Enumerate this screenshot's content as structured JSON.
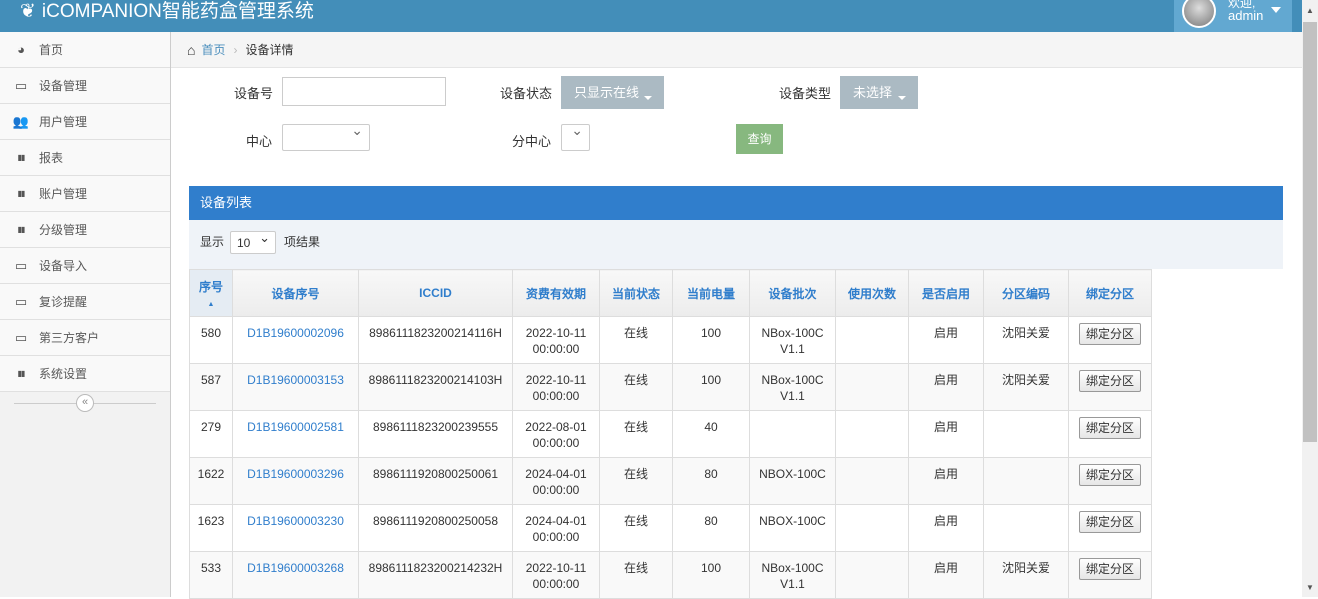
{
  "app": {
    "title": "iCOMPANION智能药盒管理系统",
    "welcome": "欢迎,",
    "user": "admin"
  },
  "sidebar": {
    "items": [
      {
        "label": "首页",
        "icon": "dashboard-icon"
      },
      {
        "label": "设备管理",
        "icon": "hdd-icon"
      },
      {
        "label": "用户管理",
        "icon": "users-icon"
      },
      {
        "label": "报表",
        "icon": "bar-chart-icon"
      },
      {
        "label": "账户管理",
        "icon": "bar-chart-icon"
      },
      {
        "label": "分级管理",
        "icon": "bar-chart-icon"
      },
      {
        "label": "设备导入",
        "icon": "hdd-icon"
      },
      {
        "label": "复诊提醒",
        "icon": "hdd-icon"
      },
      {
        "label": "第三方客户",
        "icon": "hdd-icon"
      },
      {
        "label": "系统设置",
        "icon": "bar-chart-icon"
      }
    ]
  },
  "breadcrumb": {
    "home": "首页",
    "current": "设备详情"
  },
  "filters": {
    "device_no_label": "设备号",
    "device_no_value": "",
    "status_label": "设备状态",
    "status_value": "只显示在线",
    "type_label": "设备类型",
    "type_value": "未选择",
    "center_label": "中心",
    "center_value": "",
    "subcenter_label": "分中心",
    "subcenter_value": "",
    "query": "查询"
  },
  "panel": {
    "title": "设备列表",
    "show": "显示",
    "page_len": "10",
    "results": "项结果"
  },
  "table": {
    "headers": [
      "序号",
      "设备序号",
      "ICCID",
      "资费有效期",
      "当前状态",
      "当前电量",
      "设备批次",
      "使用次数",
      "是否启用",
      "分区编码",
      "绑定分区"
    ],
    "rows": [
      [
        "580",
        "D1B19600002096",
        "898611182320021411​6H",
        "2022-10-11 00:00:00",
        "在线",
        "100",
        "NBox-100C V1.1",
        "",
        "启用",
        "沈阳关爱",
        "绑定分区"
      ],
      [
        "587",
        "D1B19600003153",
        "898611182320021410​3H",
        "2022-10-11 00:00:00",
        "在线",
        "100",
        "NBox-100C V1.1",
        "",
        "启用",
        "沈阳关爱",
        "绑定分区"
      ],
      [
        "279",
        "D1B19600002581",
        "8986111823200239555",
        "2022-08-01 00:00:00",
        "在线",
        "40",
        "",
        "",
        "启用",
        "",
        "绑定分区"
      ],
      [
        "1622",
        "D1B19600003296",
        "8986111920800250061",
        "2024-04-01 00:00:00",
        "在线",
        "80",
        "NBOX-100C",
        "",
        "启用",
        "",
        "绑定分区"
      ],
      [
        "1623",
        "D1B19600003230",
        "8986111920800250058",
        "2024-04-01 00:00:00",
        "在线",
        "80",
        "NBOX-100C",
        "",
        "启用",
        "",
        "绑定分区"
      ],
      [
        "533",
        "D1B19600003268",
        "8986111823200214232H",
        "2022-10-11 00:00:00",
        "在线",
        "100",
        "NBox-100C V1.1",
        "",
        "启用",
        "沈阳关爱",
        "绑定分区"
      ]
    ]
  },
  "colors": {
    "topbar": "#438eb9",
    "panel_header": "#307ecc",
    "query_button": "#87b87f",
    "dropdown_button": "#abbac3"
  }
}
